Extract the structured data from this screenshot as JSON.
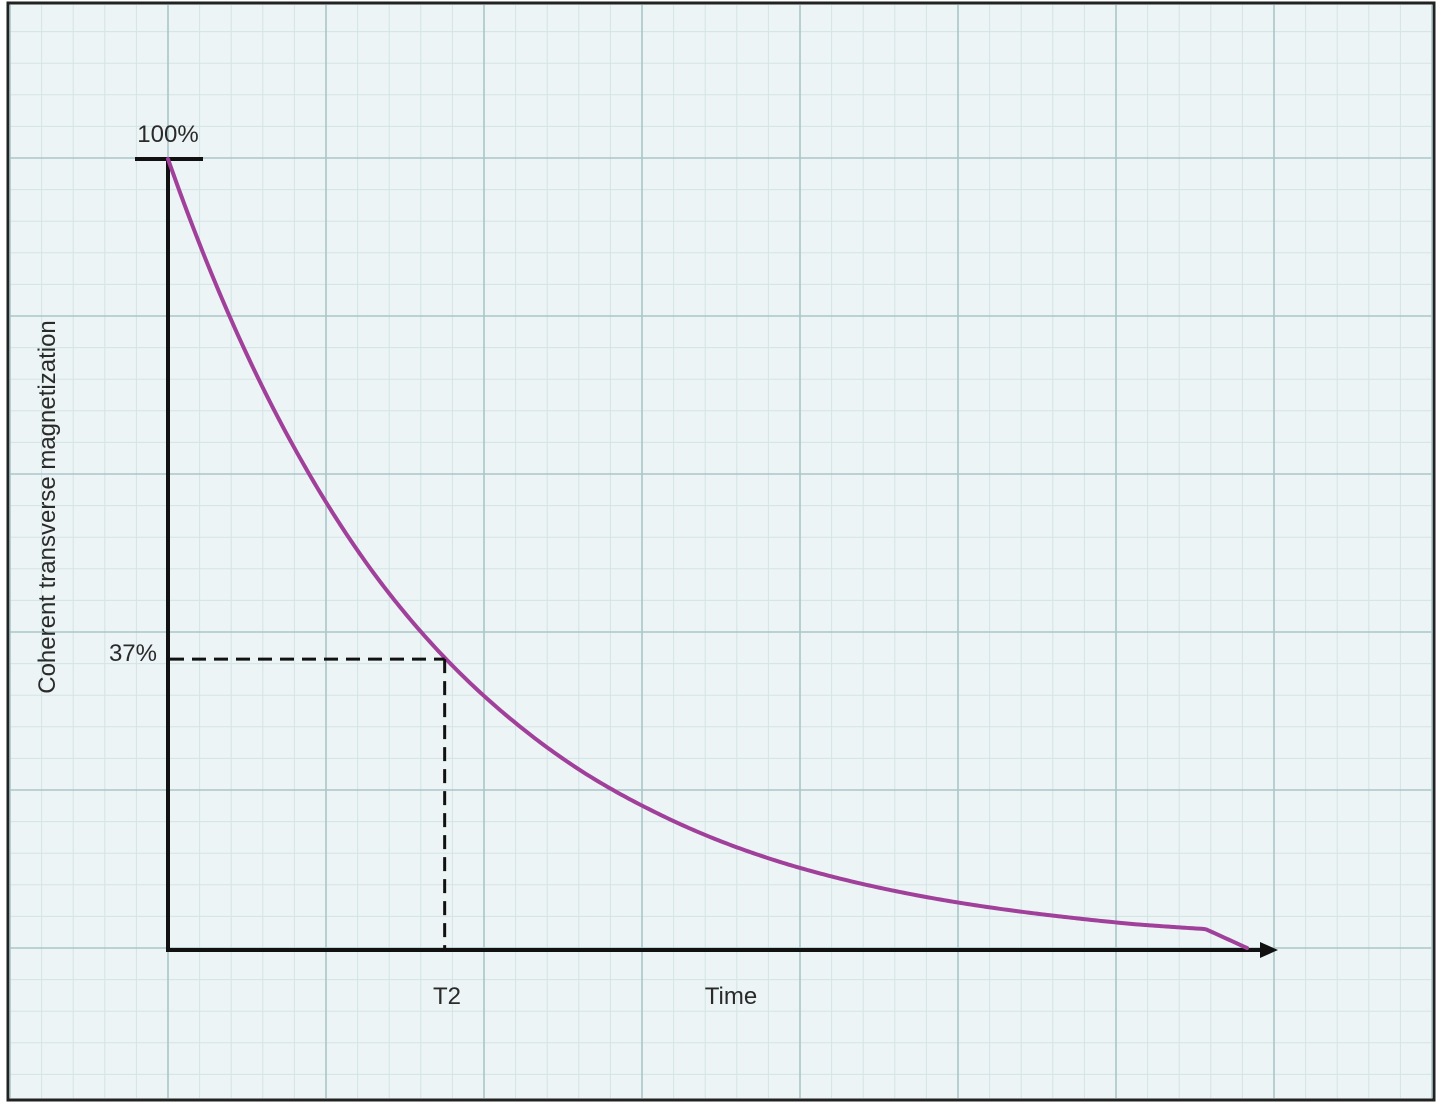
{
  "chart_data": {
    "type": "line",
    "title": "",
    "xlabel": "Time",
    "ylabel": "Coherent transverse magnetization",
    "xlim": [
      0,
      3.9
    ],
    "ylim": [
      0,
      100
    ],
    "grid": true,
    "series": [
      {
        "x": [
          0,
          0.25,
          0.5,
          0.75,
          1.0,
          1.25,
          1.5,
          1.75,
          2.0,
          2.25,
          2.5,
          2.75,
          3.0,
          3.25,
          3.5,
          3.75,
          3.9
        ],
        "y": [
          100,
          77.9,
          60.7,
          47.2,
          36.8,
          28.7,
          22.3,
          17.4,
          13.5,
          10.5,
          8.2,
          6.4,
          5.0,
          3.9,
          3.0,
          2.4,
          0
        ]
      }
    ],
    "reference_marks": {
      "y_max_label": "100%",
      "y_ref_label": "37%",
      "x_ref_label": "T2",
      "y_ref_value": 37,
      "x_ref_value": 1.0
    },
    "colors": {
      "curve": "#a0409a",
      "grid_major": "#a9c6c8",
      "grid_minor": "#d3e4e5",
      "background": "#ecf4f5",
      "axis": "#111111",
      "frame": "#222222"
    }
  }
}
